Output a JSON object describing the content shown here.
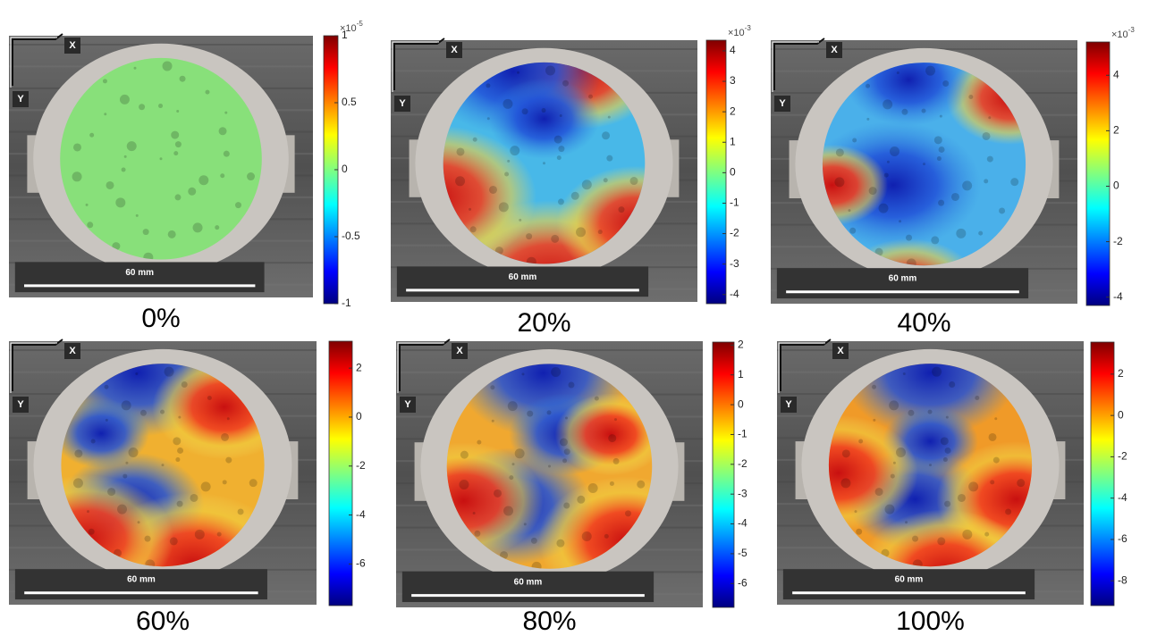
{
  "panels": [
    {
      "caption": "0%",
      "axis_x": "X",
      "axis_y": "Y",
      "scale_bar": "60 mm",
      "colorbar": {
        "exponent": {
          "base": "×10",
          "power": "-5"
        },
        "lim": [
          -1,
          1
        ],
        "ticks": [
          -1,
          -0.5,
          0,
          0.5,
          1
        ]
      }
    },
    {
      "caption": "20%",
      "axis_x": "X",
      "axis_y": "Y",
      "scale_bar": "60 mm",
      "colorbar": {
        "exponent": {
          "base": "×10",
          "power": "-3"
        },
        "lim": [
          -4.3,
          4.35
        ],
        "ticks": [
          -4,
          -3,
          -2,
          -1,
          0,
          1,
          2,
          3,
          4
        ]
      }
    },
    {
      "caption": "40%",
      "axis_x": "X",
      "axis_y": "Y",
      "scale_bar": "60 mm",
      "colorbar": {
        "exponent": {
          "base": "×10",
          "power": "-3"
        },
        "lim": [
          -4.3,
          5.2
        ],
        "ticks": [
          -4,
          -2,
          0,
          2,
          4
        ]
      }
    },
    {
      "caption": "60%",
      "axis_x": "X",
      "axis_y": "Y",
      "scale_bar": "60 mm",
      "colorbar": {
        "lim": [
          -7.7,
          3.1
        ],
        "ticks": [
          -6,
          -4,
          -2,
          0,
          2
        ]
      }
    },
    {
      "caption": "80%",
      "axis_x": "X",
      "axis_y": "Y",
      "scale_bar": "60 mm",
      "colorbar": {
        "lim": [
          -6.8,
          2.1
        ],
        "ticks": [
          -6,
          -5,
          -4,
          -3,
          -2,
          -1,
          0,
          1,
          2
        ]
      }
    },
    {
      "caption": "100%",
      "axis_x": "X",
      "axis_y": "Y",
      "scale_bar": "60 mm",
      "colorbar": {
        "lim": [
          -9.2,
          3.55
        ],
        "ticks": [
          -8,
          -6,
          -4,
          -2,
          0,
          2
        ]
      }
    }
  ]
}
